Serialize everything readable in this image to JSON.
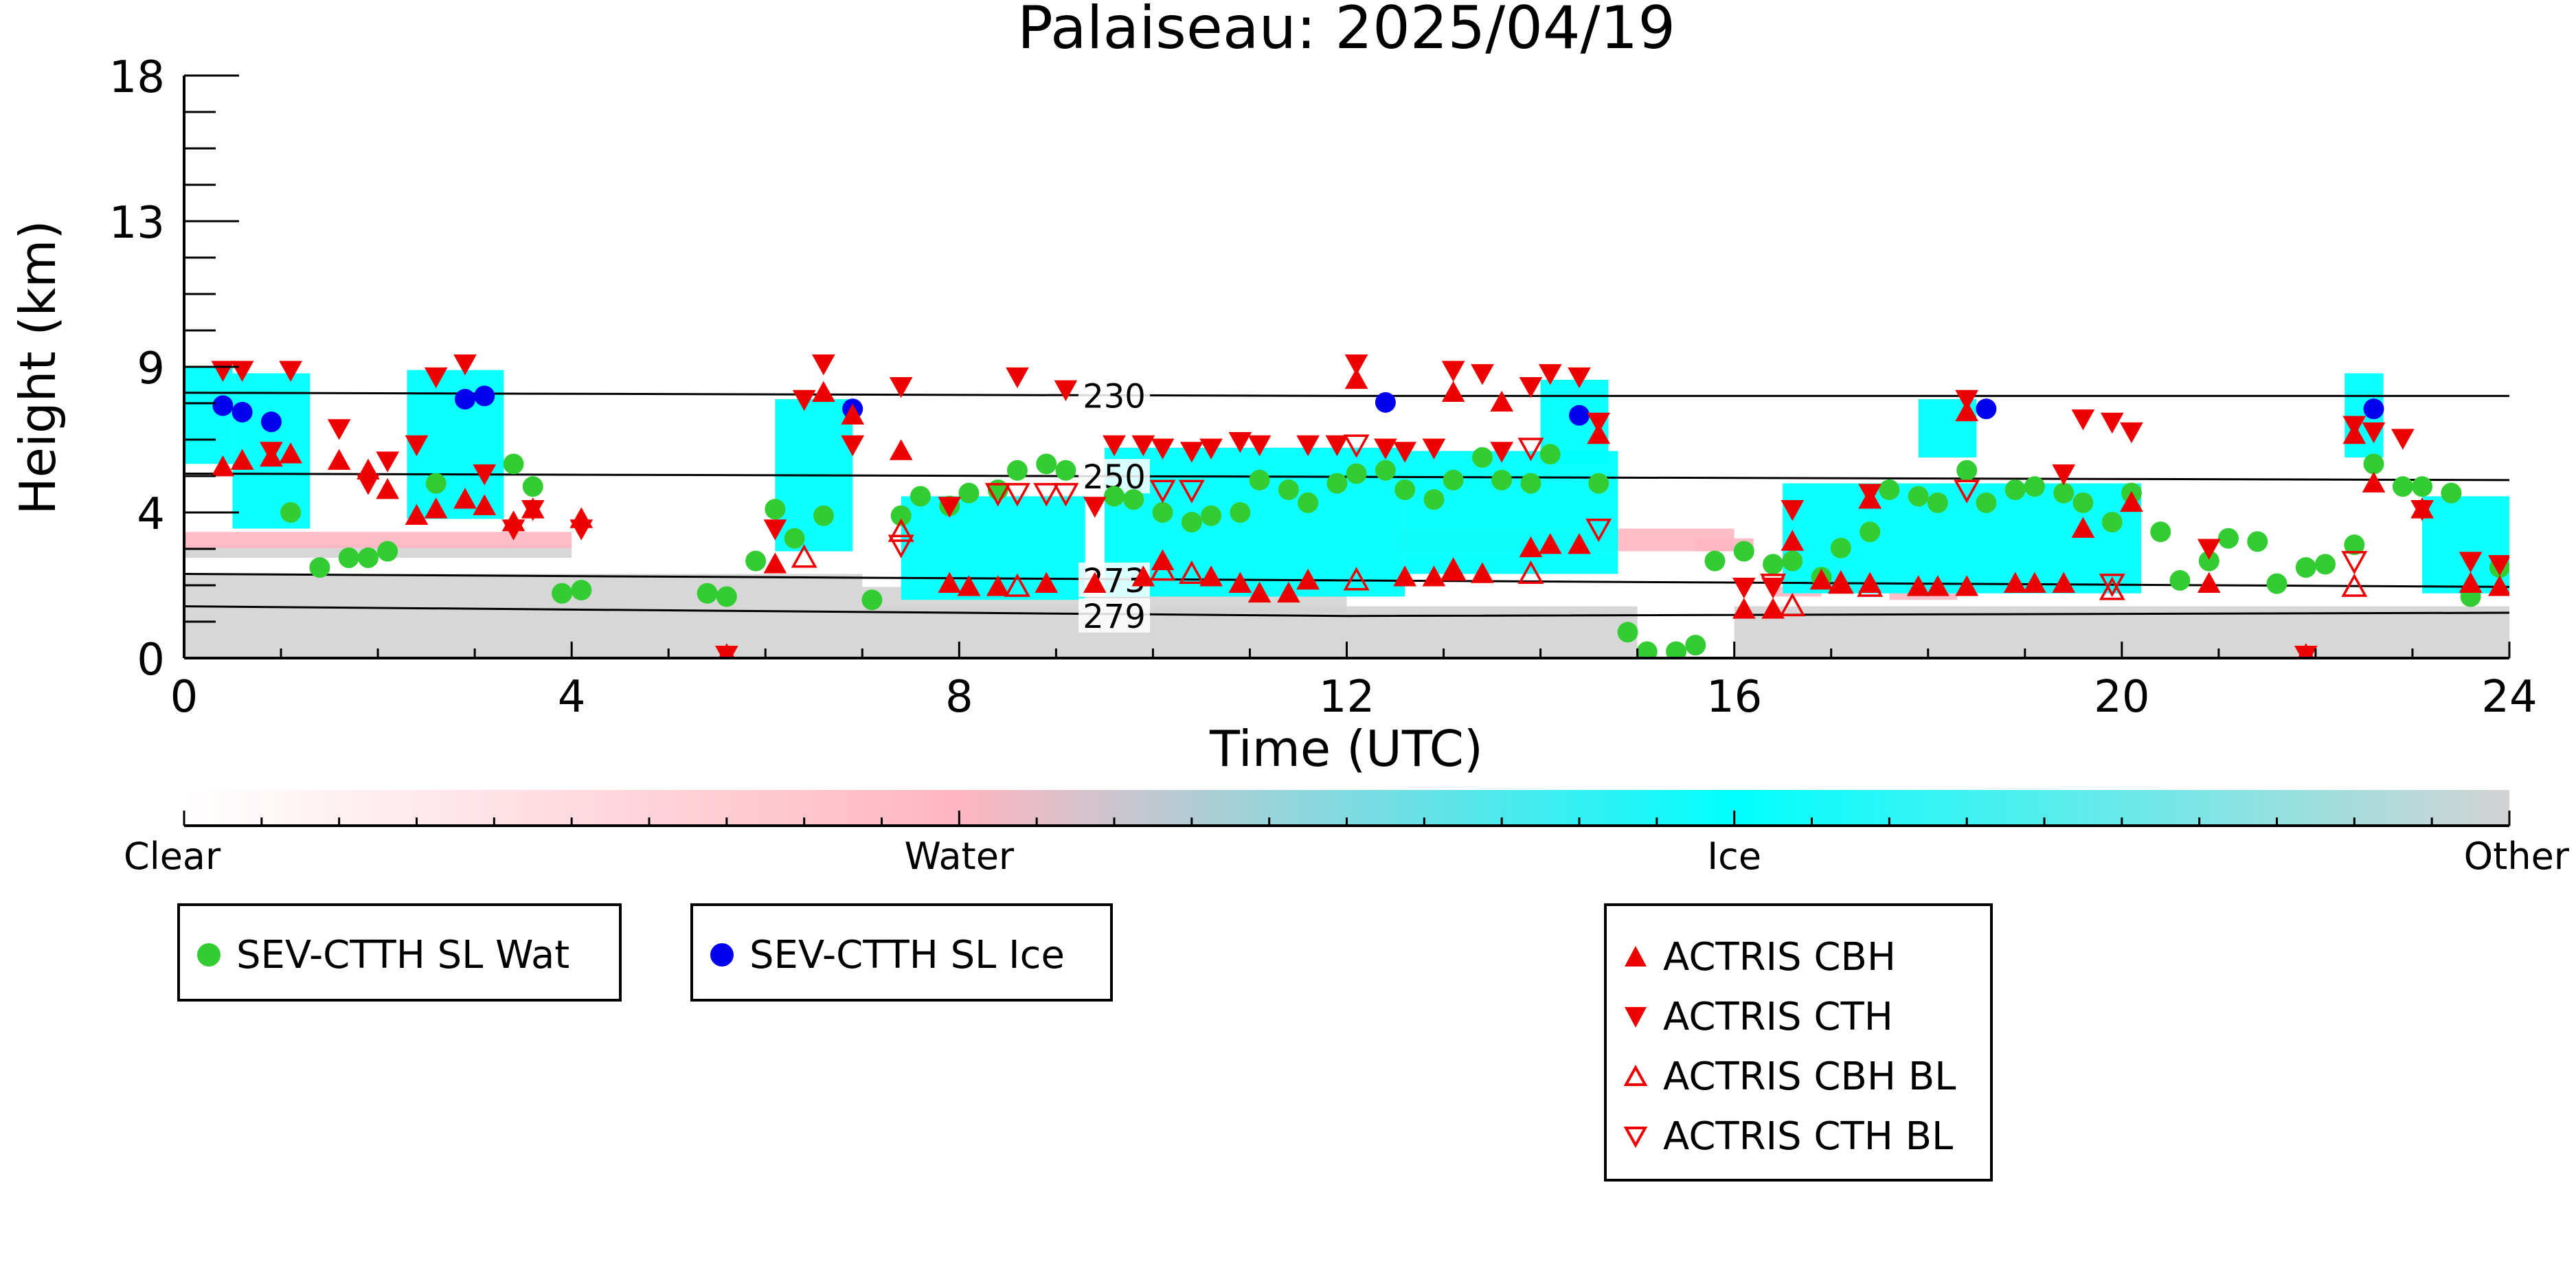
{
  "chart_data": {
    "type": "scatter",
    "title": "Palaiseau: 2025/04/19",
    "xlabel": "Time (UTC)",
    "ylabel": "Height (km)",
    "xlim": [
      0,
      24
    ],
    "ylim": [
      0,
      18
    ],
    "x_ticks": [
      "0",
      "4",
      "8",
      "12",
      "16",
      "20",
      "24"
    ],
    "y_ticks": [
      "0",
      "4",
      "9",
      "13",
      "18"
    ],
    "grid": false,
    "colorbar": {
      "labels": [
        "Clear",
        "Water",
        "Ice",
        "Other"
      ],
      "colors": [
        "#ffffff",
        "#ffb6c1",
        "#00ffff",
        "#d3d3d3"
      ]
    },
    "isotherms": [
      {
        "label": "230",
        "points": [
          [
            0,
            8.2
          ],
          [
            12,
            8.1
          ],
          [
            24,
            8.1
          ]
        ]
      },
      {
        "label": "250",
        "points": [
          [
            0,
            5.7
          ],
          [
            12,
            5.6
          ],
          [
            24,
            5.5
          ]
        ]
      },
      {
        "label": "273",
        "points": [
          [
            0,
            2.6
          ],
          [
            12,
            2.4
          ],
          [
            24,
            2.2
          ]
        ]
      },
      {
        "label": "279",
        "points": [
          [
            0,
            1.6
          ],
          [
            12,
            1.3
          ],
          [
            24,
            1.4
          ]
        ]
      }
    ],
    "series": [
      {
        "name": "SEV-CTTH SL Wat",
        "marker": "circle",
        "color": "#33cc33",
        "points": [
          [
            1.1,
            4.5
          ],
          [
            1.4,
            2.8
          ],
          [
            1.7,
            3.1
          ],
          [
            1.9,
            3.1
          ],
          [
            2.1,
            3.3
          ],
          [
            2.6,
            5.4
          ],
          [
            3.4,
            6.0
          ],
          [
            3.6,
            5.3
          ],
          [
            3.9,
            2.0
          ],
          [
            4.1,
            2.1
          ],
          [
            5.4,
            2.0
          ],
          [
            5.6,
            1.9
          ],
          [
            5.9,
            3.0
          ],
          [
            6.1,
            4.6
          ],
          [
            6.3,
            3.7
          ],
          [
            6.6,
            4.4
          ],
          [
            7.1,
            1.8
          ],
          [
            7.4,
            4.4
          ],
          [
            7.6,
            5.0
          ],
          [
            7.9,
            4.7
          ],
          [
            8.1,
            5.1
          ],
          [
            8.4,
            5.2
          ],
          [
            8.6,
            5.8
          ],
          [
            8.9,
            6.0
          ],
          [
            9.1,
            5.8
          ],
          [
            9.6,
            5.0
          ],
          [
            9.8,
            4.9
          ],
          [
            10.1,
            4.5
          ],
          [
            10.4,
            4.2
          ],
          [
            10.6,
            4.4
          ],
          [
            10.9,
            4.5
          ],
          [
            11.1,
            5.5
          ],
          [
            11.4,
            5.2
          ],
          [
            11.6,
            4.8
          ],
          [
            11.9,
            5.4
          ],
          [
            12.1,
            5.7
          ],
          [
            12.4,
            5.8
          ],
          [
            12.6,
            5.2
          ],
          [
            12.9,
            4.9
          ],
          [
            13.1,
            5.5
          ],
          [
            13.4,
            6.2
          ],
          [
            13.6,
            5.5
          ],
          [
            13.9,
            5.4
          ],
          [
            14.1,
            6.3
          ],
          [
            14.6,
            5.4
          ],
          [
            14.9,
            0.8
          ],
          [
            15.1,
            0.2
          ],
          [
            15.4,
            0.2
          ],
          [
            15.6,
            0.4
          ],
          [
            15.8,
            3.0
          ],
          [
            16.1,
            3.3
          ],
          [
            16.4,
            2.9
          ],
          [
            16.6,
            3.0
          ],
          [
            16.9,
            2.5
          ],
          [
            17.1,
            3.4
          ],
          [
            17.4,
            3.9
          ],
          [
            17.6,
            5.2
          ],
          [
            17.9,
            5.0
          ],
          [
            18.1,
            4.8
          ],
          [
            18.4,
            5.8
          ],
          [
            18.6,
            4.8
          ],
          [
            18.9,
            5.2
          ],
          [
            19.1,
            5.3
          ],
          [
            19.4,
            5.1
          ],
          [
            19.6,
            4.8
          ],
          [
            19.9,
            4.2
          ],
          [
            20.1,
            5.1
          ],
          [
            20.4,
            3.9
          ],
          [
            20.6,
            2.4
          ],
          [
            20.9,
            3.0
          ],
          [
            21.1,
            3.7
          ],
          [
            21.4,
            3.6
          ],
          [
            21.6,
            2.3
          ],
          [
            21.9,
            2.8
          ],
          [
            22.1,
            2.9
          ],
          [
            22.4,
            3.5
          ],
          [
            22.6,
            6.0
          ],
          [
            22.9,
            5.3
          ],
          [
            23.1,
            5.3
          ],
          [
            23.4,
            5.1
          ],
          [
            23.6,
            1.9
          ],
          [
            23.9,
            2.8
          ]
        ]
      },
      {
        "name": "SEV-CTTH SL Ice",
        "marker": "circle",
        "color": "#0000ee",
        "points": [
          [
            0.4,
            7.8
          ],
          [
            0.6,
            7.6
          ],
          [
            0.9,
            7.3
          ],
          [
            2.9,
            8.0
          ],
          [
            3.1,
            8.1
          ],
          [
            6.9,
            7.7
          ],
          [
            12.4,
            7.9
          ],
          [
            14.4,
            7.5
          ],
          [
            18.6,
            7.7
          ],
          [
            22.6,
            7.7
          ]
        ]
      },
      {
        "name": "ACTRIS CBH",
        "marker": "triangle-up",
        "color": "#ee0000",
        "filled": true,
        "points": [
          [
            0.4,
            5.9
          ],
          [
            0.6,
            6.1
          ],
          [
            0.9,
            6.2
          ],
          [
            1.1,
            6.3
          ],
          [
            1.6,
            6.1
          ],
          [
            1.9,
            5.8
          ],
          [
            2.1,
            5.2
          ],
          [
            2.4,
            4.4
          ],
          [
            2.6,
            4.6
          ],
          [
            2.9,
            4.9
          ],
          [
            3.1,
            4.7
          ],
          [
            3.4,
            4.2
          ],
          [
            3.6,
            4.6
          ],
          [
            4.1,
            4.3
          ],
          [
            5.6,
            0.1
          ],
          [
            6.1,
            2.9
          ],
          [
            6.9,
            7.5
          ],
          [
            6.6,
            8.2
          ],
          [
            7.4,
            6.4
          ],
          [
            7.9,
            2.3
          ],
          [
            8.1,
            2.2
          ],
          [
            8.4,
            2.2
          ],
          [
            8.9,
            2.3
          ],
          [
            9.4,
            2.3
          ],
          [
            9.9,
            2.5
          ],
          [
            10.1,
            3.0
          ],
          [
            10.6,
            2.5
          ],
          [
            10.9,
            2.3
          ],
          [
            11.1,
            2.0
          ],
          [
            11.4,
            2.0
          ],
          [
            11.6,
            2.4
          ],
          [
            12.1,
            8.6
          ],
          [
            12.6,
            2.5
          ],
          [
            12.9,
            2.5
          ],
          [
            13.1,
            2.7
          ],
          [
            13.1,
            8.2
          ],
          [
            13.4,
            2.6
          ],
          [
            13.6,
            7.9
          ],
          [
            13.9,
            3.4
          ],
          [
            14.1,
            3.5
          ],
          [
            14.4,
            3.5
          ],
          [
            14.6,
            6.9
          ],
          [
            16.1,
            1.5
          ],
          [
            16.4,
            1.5
          ],
          [
            16.6,
            3.6
          ],
          [
            16.9,
            2.4
          ],
          [
            17.1,
            2.3
          ],
          [
            17.4,
            2.3
          ],
          [
            17.4,
            4.9
          ],
          [
            17.9,
            2.2
          ],
          [
            18.1,
            2.2
          ],
          [
            18.4,
            2.2
          ],
          [
            18.4,
            7.6
          ],
          [
            18.9,
            2.3
          ],
          [
            19.1,
            2.3
          ],
          [
            19.4,
            2.3
          ],
          [
            19.6,
            4.0
          ],
          [
            20.1,
            4.8
          ],
          [
            20.9,
            2.3
          ],
          [
            21.9,
            0.1
          ],
          [
            22.4,
            6.9
          ],
          [
            22.6,
            5.4
          ],
          [
            23.1,
            4.6
          ],
          [
            23.6,
            2.3
          ],
          [
            23.9,
            2.2
          ]
        ]
      },
      {
        "name": "ACTRIS CTH",
        "marker": "triangle-down",
        "color": "#ee0000",
        "filled": true,
        "points": [
          [
            0.4,
            8.9
          ],
          [
            0.6,
            8.9
          ],
          [
            0.9,
            6.4
          ],
          [
            1.1,
            8.9
          ],
          [
            1.6,
            7.1
          ],
          [
            1.9,
            5.4
          ],
          [
            2.1,
            6.1
          ],
          [
            2.4,
            6.6
          ],
          [
            2.6,
            8.7
          ],
          [
            2.9,
            9.1
          ],
          [
            3.1,
            5.7
          ],
          [
            3.4,
            4.0
          ],
          [
            3.6,
            4.6
          ],
          [
            4.1,
            4.0
          ],
          [
            5.6,
            0.1
          ],
          [
            6.1,
            4.0
          ],
          [
            6.4,
            8.0
          ],
          [
            6.6,
            9.1
          ],
          [
            6.9,
            6.6
          ],
          [
            7.4,
            8.4
          ],
          [
            7.9,
            4.7
          ],
          [
            8.6,
            8.7
          ],
          [
            9.1,
            8.3
          ],
          [
            9.4,
            4.7
          ],
          [
            9.6,
            6.6
          ],
          [
            9.9,
            6.6
          ],
          [
            10.1,
            6.5
          ],
          [
            10.4,
            6.4
          ],
          [
            10.6,
            6.5
          ],
          [
            10.9,
            6.7
          ],
          [
            11.1,
            6.6
          ],
          [
            11.6,
            6.6
          ],
          [
            11.9,
            6.6
          ],
          [
            12.1,
            9.1
          ],
          [
            12.4,
            6.5
          ],
          [
            12.6,
            6.4
          ],
          [
            12.9,
            6.5
          ],
          [
            13.1,
            8.9
          ],
          [
            13.4,
            8.8
          ],
          [
            13.6,
            6.4
          ],
          [
            13.9,
            8.4
          ],
          [
            14.1,
            8.8
          ],
          [
            14.4,
            8.7
          ],
          [
            14.6,
            7.3
          ],
          [
            16.1,
            2.2
          ],
          [
            16.4,
            2.2
          ],
          [
            16.6,
            4.6
          ],
          [
            17.4,
            5.1
          ],
          [
            18.4,
            8.0
          ],
          [
            19.4,
            5.7
          ],
          [
            19.6,
            7.4
          ],
          [
            19.9,
            7.3
          ],
          [
            20.1,
            7.0
          ],
          [
            20.9,
            3.4
          ],
          [
            22.4,
            7.2
          ],
          [
            22.6,
            7.0
          ],
          [
            22.9,
            6.8
          ],
          [
            23.1,
            4.6
          ],
          [
            23.6,
            3.0
          ],
          [
            23.9,
            2.9
          ],
          [
            21.9,
            0.1
          ]
        ]
      },
      {
        "name": "ACTRIS CBH BL",
        "marker": "triangle-up",
        "color": "#ee0000",
        "filled": false,
        "points": [
          [
            6.4,
            3.1
          ],
          [
            7.4,
            3.9
          ],
          [
            8.6,
            2.2
          ],
          [
            10.1,
            2.7
          ],
          [
            10.4,
            2.6
          ],
          [
            12.1,
            2.4
          ],
          [
            13.1,
            2.7
          ],
          [
            13.9,
            2.6
          ],
          [
            16.6,
            1.6
          ],
          [
            17.1,
            2.3
          ],
          [
            17.4,
            2.2
          ],
          [
            19.9,
            2.1
          ],
          [
            22.4,
            2.2
          ]
        ]
      },
      {
        "name": "ACTRIS CTH BL",
        "marker": "triangle-down",
        "color": "#ee0000",
        "filled": false,
        "points": [
          [
            7.4,
            3.5
          ],
          [
            8.4,
            5.1
          ],
          [
            8.6,
            5.1
          ],
          [
            8.9,
            5.1
          ],
          [
            9.1,
            5.1
          ],
          [
            10.1,
            5.2
          ],
          [
            10.4,
            5.2
          ],
          [
            12.1,
            6.6
          ],
          [
            13.9,
            6.5
          ],
          [
            14.6,
            4.0
          ],
          [
            16.4,
            2.3
          ],
          [
            18.4,
            5.2
          ],
          [
            19.9,
            2.3
          ],
          [
            22.4,
            3.0
          ]
        ]
      }
    ],
    "cloud_mask": [
      {
        "class": "Ice",
        "regions": [
          [
            0.0,
            0.5,
            6.0,
            9.0
          ],
          [
            0.5,
            1.3,
            4.0,
            8.8
          ],
          [
            2.3,
            3.3,
            4.3,
            8.9
          ],
          [
            6.1,
            6.9,
            3.3,
            8.0
          ],
          [
            7.4,
            9.3,
            1.8,
            5.0
          ],
          [
            9.5,
            12.6,
            1.9,
            6.5
          ],
          [
            12.6,
            14.8,
            2.6,
            6.4
          ],
          [
            14.0,
            14.7,
            6.0,
            8.6
          ],
          [
            16.5,
            20.2,
            2.0,
            5.4
          ],
          [
            17.9,
            18.5,
            6.2,
            8.0
          ],
          [
            22.3,
            22.7,
            6.2,
            8.8
          ],
          [
            23.1,
            24.0,
            2.0,
            5.0
          ]
        ]
      },
      {
        "class": "Water",
        "regions": [
          [
            0.0,
            4.0,
            3.4,
            3.9
          ],
          [
            12.5,
            16.0,
            3.3,
            4.0
          ],
          [
            15.6,
            16.2,
            3.3,
            3.7
          ],
          [
            16.4,
            16.9,
            1.9,
            2.2
          ],
          [
            17.6,
            18.3,
            1.8,
            2.1
          ]
        ]
      },
      {
        "class": "Other",
        "regions": [
          [
            0.0,
            15.0,
            0.0,
            1.6
          ],
          [
            0.0,
            7.0,
            1.6,
            2.6
          ],
          [
            7.0,
            12.0,
            1.4,
            2.2
          ],
          [
            16.0,
            24.0,
            0.0,
            1.6
          ],
          [
            0.0,
            4.0,
            3.1,
            3.5
          ]
        ]
      }
    ]
  },
  "legend": {
    "sev": [
      {
        "label": "SEV-CTTH SL Wat",
        "color": "#33cc33"
      },
      {
        "label": "SEV-CTTH SL Ice",
        "color": "#0000ee"
      }
    ],
    "actris": [
      {
        "label": "ACTRIS CBH",
        "marker": "triangle-up",
        "filled": true
      },
      {
        "label": "ACTRIS CTH",
        "marker": "triangle-down",
        "filled": true
      },
      {
        "label": "ACTRIS CBH BL",
        "marker": "triangle-up",
        "filled": false
      },
      {
        "label": "ACTRIS CTH BL",
        "marker": "triangle-down",
        "filled": false
      }
    ]
  }
}
